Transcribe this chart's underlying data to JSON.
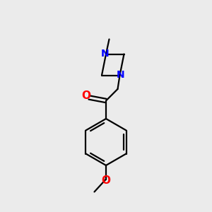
{
  "bg_color": "#ebebeb",
  "bond_color": "#000000",
  "n_color": "#0000ff",
  "o_color": "#ff0000",
  "font_size": 10,
  "bond_width": 1.6,
  "figsize": [
    3.0,
    3.0
  ],
  "dpi": 100,
  "xlim": [
    0,
    10
  ],
  "ylim": [
    0,
    10
  ]
}
